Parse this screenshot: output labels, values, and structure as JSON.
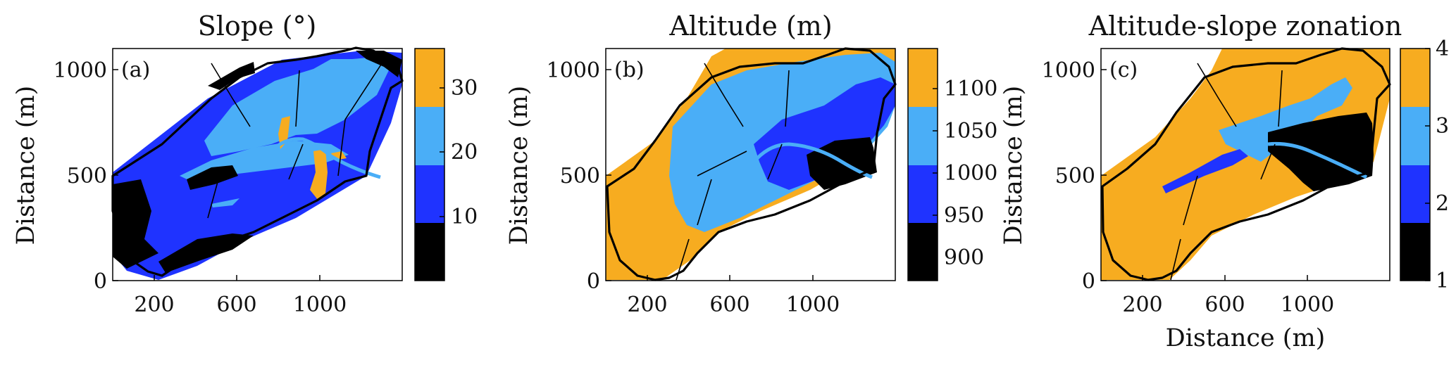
{
  "figure": {
    "panels": [
      {
        "id": "a",
        "title": "Slope (°)",
        "label": "(a)",
        "ylabel": "Distance (m)",
        "xlabel": "",
        "xticks": [
          "200",
          "600",
          "1000"
        ],
        "yticks": [
          "0",
          "500",
          "1000"
        ],
        "colorbar": {
          "ticks": [
            "10",
            "20",
            "30"
          ],
          "colors": [
            "#000000",
            "#1f33ff",
            "#4aaef7",
            "#f7ac20"
          ]
        }
      },
      {
        "id": "b",
        "title": "Altitude (m)",
        "label": "(b)",
        "ylabel": "Distance (m)",
        "xlabel": "",
        "xticks": [
          "200",
          "600",
          "1000"
        ],
        "yticks": [
          "0",
          "500",
          "1000"
        ],
        "colorbar": {
          "ticks": [
            "900",
            "950",
            "1000",
            "1050",
            "1100"
          ],
          "colors": [
            "#000000",
            "#1f33ff",
            "#4aaef7",
            "#f7ac20"
          ]
        }
      },
      {
        "id": "c",
        "title": "Altitude-slope zonation",
        "label": "(c)",
        "ylabel": "Distance (m)",
        "xlabel": "Distance (m)",
        "xticks": [
          "200",
          "600",
          "1000"
        ],
        "yticks": [
          "0",
          "500",
          "1000"
        ],
        "colorbar": {
          "ticks": [
            "1",
            "2",
            "3",
            "4"
          ],
          "colors": [
            "#000000",
            "#1f33ff",
            "#4aaef7",
            "#f7ac20"
          ]
        }
      }
    ]
  },
  "chart_data": [
    {
      "type": "heatmap",
      "title": "Slope (°)",
      "ylabel": "Distance (m)",
      "xlim": [
        0,
        1400
      ],
      "ylim": [
        0,
        1100
      ],
      "xticks": [
        200,
        600,
        1000
      ],
      "yticks": [
        0,
        500,
        1000
      ],
      "colorbar_ticks": [
        10,
        20,
        30
      ],
      "colorbar_range": [
        0,
        36
      ],
      "classes": [
        {
          "range": [
            0,
            10
          ],
          "color": "#000000"
        },
        {
          "range": [
            10,
            20
          ],
          "color": "#1f33ff"
        },
        {
          "range": [
            20,
            30
          ],
          "color": "#4aaef7"
        },
        {
          "range": [
            30,
            36
          ],
          "color": "#f7ac20"
        }
      ]
    },
    {
      "type": "heatmap",
      "title": "Altitude (m)",
      "ylabel": "Distance (m)",
      "xlim": [
        0,
        1400
      ],
      "ylim": [
        0,
        1100
      ],
      "xticks": [
        200,
        600,
        1000
      ],
      "yticks": [
        0,
        500,
        1000
      ],
      "colorbar_ticks": [
        900,
        950,
        1000,
        1050,
        1100
      ],
      "colorbar_range": [
        875,
        1150
      ],
      "classes": [
        {
          "range": [
            875,
            950
          ],
          "color": "#000000"
        },
        {
          "range": [
            950,
            1000
          ],
          "color": "#1f33ff"
        },
        {
          "range": [
            1000,
            1050
          ],
          "color": "#4aaef7"
        },
        {
          "range": [
            1050,
            1150
          ],
          "color": "#f7ac20"
        }
      ]
    },
    {
      "type": "heatmap",
      "title": "Altitude-slope zonation",
      "xlabel": "Distance (m)",
      "ylabel": "Distance (m)",
      "xlim": [
        0,
        1400
      ],
      "ylim": [
        0,
        1100
      ],
      "xticks": [
        200,
        600,
        1000
      ],
      "yticks": [
        0,
        500,
        1000
      ],
      "colorbar_ticks": [
        1,
        2,
        3,
        4
      ],
      "colorbar_range": [
        1,
        4
      ],
      "classes": [
        {
          "range": [
            1,
            1.75
          ],
          "color": "#000000"
        },
        {
          "range": [
            1.75,
            2.5
          ],
          "color": "#1f33ff"
        },
        {
          "range": [
            2.5,
            3.25
          ],
          "color": "#4aaef7"
        },
        {
          "range": [
            3.25,
            4
          ],
          "color": "#f7ac20"
        }
      ]
    }
  ]
}
